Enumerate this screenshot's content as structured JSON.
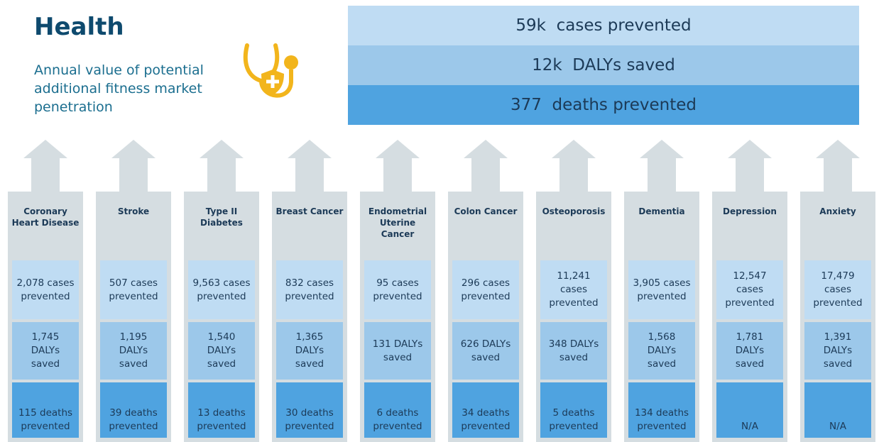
{
  "header": {
    "title": "Health",
    "subtitle": "Annual value of potential additional fitness market penetration"
  },
  "summary": [
    "59k  cases prevented",
    "12k  DALYs saved",
    "377  deaths prevented"
  ],
  "columns": [
    {
      "name": "Coronary Heart Disease",
      "cases": "2,078 cases prevented",
      "dalys": "1,745 DALYs saved",
      "deaths": "115 deaths prevented"
    },
    {
      "name": "Stroke",
      "cases": "507 cases prevented",
      "dalys": "1,195 DALYs saved",
      "deaths": "39 deaths prevented"
    },
    {
      "name": "Type II Diabetes",
      "cases": "9,563 cases prevented",
      "dalys": "1,540 DALYs saved",
      "deaths": "13 deaths prevented"
    },
    {
      "name": "Breast Cancer",
      "cases": "832 cases prevented",
      "dalys": "1,365 DALYs saved",
      "deaths": "30 deaths prevented"
    },
    {
      "name": "Endometrial Uterine Cancer",
      "cases": "95 cases prevented",
      "dalys": "131 DALYs saved",
      "deaths": "6 deaths prevented"
    },
    {
      "name": "Colon Cancer",
      "cases": "296 cases prevented",
      "dalys": "626 DALYs saved",
      "deaths": "34 deaths prevented"
    },
    {
      "name": "Osteoporosis",
      "cases": "11,241 cases prevented",
      "dalys": "348 DALYs saved",
      "deaths": "5 deaths prevented"
    },
    {
      "name": "Dementia",
      "cases": "3,905 cases prevented",
      "dalys": "1,568 DALYs saved",
      "deaths": "134 deaths prevented"
    },
    {
      "name": "Depression",
      "cases": "12,547 cases prevented",
      "dalys": "1,781 DALYs saved",
      "deaths": "N/A"
    },
    {
      "name": "Anxiety",
      "cases": "17,479 cases prevented",
      "dalys": "1,391 DALYs saved",
      "deaths": "N/A"
    }
  ]
}
